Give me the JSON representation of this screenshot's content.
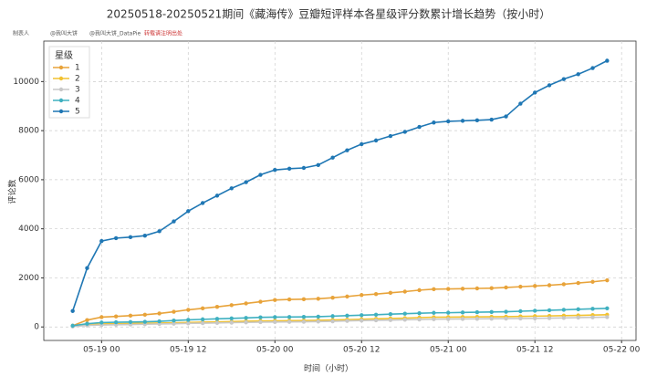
{
  "chart_data": {
    "type": "line",
    "title": "20250518-20250521期间《藏海传》豆瓣短评样本各星级评分数累计增长趋势（按小时）",
    "source": [
      "制表人",
      "@我叫大饼",
      "@我叫大饼_DataPie",
      "转载请注明出处"
    ],
    "xlabel": "时间（小时）",
    "ylabel": "评论数",
    "legend_title": "星级",
    "legend": "upper left",
    "grid": true,
    "x": [
      "05-18 20",
      "05-18 22",
      "05-19 00",
      "05-19 02",
      "05-19 04",
      "05-19 06",
      "05-19 08",
      "05-19 10",
      "05-19 12",
      "05-19 14",
      "05-19 16",
      "05-19 18",
      "05-19 20",
      "05-19 22",
      "05-20 00",
      "05-20 02",
      "05-20 04",
      "05-20 06",
      "05-20 08",
      "05-20 10",
      "05-20 12",
      "05-20 14",
      "05-20 16",
      "05-20 18",
      "05-20 20",
      "05-20 22",
      "05-21 00",
      "05-21 02",
      "05-21 04",
      "05-21 06",
      "05-21 08",
      "05-21 10",
      "05-21 12",
      "05-21 14",
      "05-21 16",
      "05-21 18",
      "05-21 20",
      "05-21 22"
    ],
    "xlim": [
      "05-18 16",
      "05-22 02"
    ],
    "xticks": [
      "05-19 00",
      "05-19 12",
      "05-20 00",
      "05-20 12",
      "05-21 00",
      "05-21 12",
      "05-22 00"
    ],
    "ylim": [
      -550,
      11650
    ],
    "yticks": [
      0,
      2000,
      4000,
      6000,
      8000,
      10000
    ],
    "series": [
      {
        "name": "1",
        "color": "#e8a33a",
        "values": [
          50,
          280,
          400,
          430,
          460,
          500,
          550,
          620,
          700,
          760,
          820,
          890,
          960,
          1030,
          1100,
          1120,
          1130,
          1150,
          1190,
          1240,
          1300,
          1340,
          1390,
          1440,
          1500,
          1540,
          1550,
          1560,
          1570,
          1580,
          1610,
          1640,
          1670,
          1700,
          1740,
          1790,
          1840,
          1900
        ]
      },
      {
        "name": "2",
        "color": "#f2c230",
        "values": [
          30,
          90,
          120,
          130,
          140,
          150,
          160,
          170,
          185,
          195,
          205,
          220,
          235,
          245,
          250,
          255,
          260,
          270,
          285,
          300,
          315,
          330,
          345,
          360,
          380,
          395,
          400,
          405,
          410,
          415,
          420,
          430,
          440,
          450,
          460,
          470,
          485,
          500
        ]
      },
      {
        "name": "3",
        "color": "#c8c8c8",
        "values": [
          20,
          60,
          80,
          90,
          100,
          110,
          120,
          130,
          145,
          155,
          165,
          175,
          185,
          195,
          200,
          205,
          210,
          220,
          230,
          245,
          260,
          270,
          280,
          295,
          305,
          315,
          320,
          325,
          330,
          335,
          340,
          345,
          350,
          360,
          370,
          380,
          390,
          400
        ]
      },
      {
        "name": "4",
        "color": "#3fb0c0",
        "values": [
          50,
          130,
          180,
          190,
          200,
          210,
          230,
          260,
          290,
          310,
          330,
          350,
          370,
          390,
          400,
          405,
          410,
          420,
          440,
          460,
          480,
          500,
          520,
          540,
          560,
          575,
          580,
          590,
          600,
          610,
          620,
          640,
          660,
          680,
          700,
          720,
          740,
          760
        ]
      },
      {
        "name": "5",
        "color": "#1f77b4",
        "values": [
          650,
          2400,
          3500,
          3620,
          3660,
          3720,
          3900,
          4300,
          4720,
          5050,
          5350,
          5650,
          5900,
          6200,
          6400,
          6450,
          6480,
          6600,
          6900,
          7200,
          7450,
          7600,
          7780,
          7950,
          8150,
          8330,
          8380,
          8400,
          8420,
          8450,
          8580,
          9100,
          9550,
          9850,
          10100,
          10300,
          10550,
          10850
        ]
      }
    ]
  }
}
